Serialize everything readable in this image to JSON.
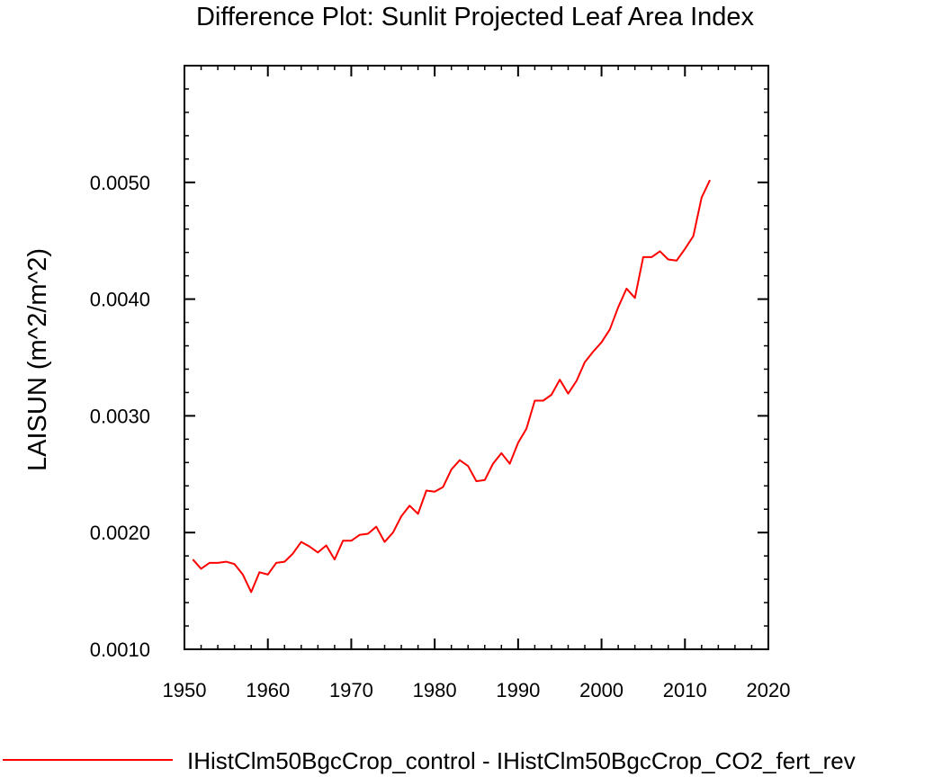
{
  "chart_data": {
    "type": "line",
    "title": "Difference Plot: Sunlit Projected Leaf Area Index",
    "ylabel": "LAISUN  (m^2/m^2)",
    "xlabel": "",
    "xlim": [
      1950,
      2020
    ],
    "ylim": [
      0.001,
      0.006
    ],
    "x_ticks": [
      1950,
      1960,
      1970,
      1980,
      1990,
      2000,
      2010,
      2020
    ],
    "y_ticks": [
      0.001,
      0.002,
      0.003,
      0.004,
      0.005
    ],
    "x_tick_labels": [
      "1950",
      "1960",
      "1970",
      "1980",
      "1990",
      "2000",
      "2010",
      "2020"
    ],
    "y_tick_labels": [
      "0.0010",
      "0.0020",
      "0.0030",
      "0.0040",
      "0.0050"
    ],
    "grid": false,
    "legend_position": "bottom",
    "series": [
      {
        "name": "IHistClm50BgcCrop_control - IHistClm50BgcCrop_CO2_fert_rev",
        "color": "#ff0000",
        "x": [
          1951,
          1952,
          1953,
          1954,
          1955,
          1956,
          1957,
          1958,
          1959,
          1960,
          1961,
          1962,
          1963,
          1964,
          1965,
          1966,
          1967,
          1968,
          1969,
          1970,
          1971,
          1972,
          1973,
          1974,
          1975,
          1976,
          1977,
          1978,
          1979,
          1980,
          1981,
          1982,
          1983,
          1984,
          1985,
          1986,
          1987,
          1988,
          1989,
          1990,
          1991,
          1992,
          1993,
          1994,
          1995,
          1996,
          1997,
          1998,
          1999,
          2000,
          2001,
          2002,
          2003,
          2004,
          2005,
          2006,
          2007,
          2008,
          2009,
          2010,
          2011,
          2012,
          2013
        ],
        "values": [
          0.00177,
          0.00169,
          0.00174,
          0.00174,
          0.00175,
          0.00173,
          0.00164,
          0.00149,
          0.00166,
          0.00164,
          0.00174,
          0.00175,
          0.00182,
          0.00192,
          0.00188,
          0.00183,
          0.00189,
          0.00177,
          0.00193,
          0.00193,
          0.00198,
          0.00199,
          0.00205,
          0.00192,
          0.002,
          0.00214,
          0.00223,
          0.00216,
          0.00236,
          0.00235,
          0.00239,
          0.00254,
          0.00262,
          0.00257,
          0.00244,
          0.00245,
          0.00259,
          0.00268,
          0.00259,
          0.00277,
          0.00289,
          0.00313,
          0.00313,
          0.00318,
          0.00331,
          0.00319,
          0.0033,
          0.00346,
          0.00355,
          0.00363,
          0.00374,
          0.00393,
          0.00409,
          0.00401,
          0.00436,
          0.00436,
          0.00441,
          0.00434,
          0.00433,
          0.00443,
          0.00454,
          0.00487,
          0.00502
        ]
      }
    ]
  }
}
